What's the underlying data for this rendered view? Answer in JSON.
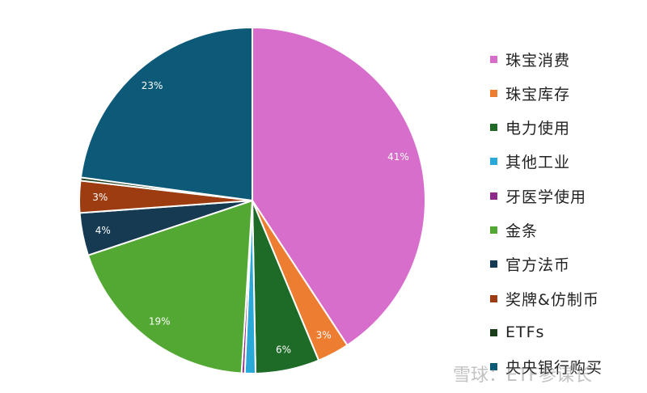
{
  "chart_data": {
    "type": "pie",
    "title": "",
    "slices": [
      {
        "label": "珠宝消费",
        "value": 41,
        "display": "41%",
        "color": "#d86ecc"
      },
      {
        "label": "珠宝库存",
        "value": 3,
        "display": "3%",
        "color": "#ed7d31"
      },
      {
        "label": "电力使用",
        "value": 6,
        "display": "6%",
        "color": "#1e6b28"
      },
      {
        "label": "其他工业",
        "value": 1,
        "display": "",
        "color": "#2aa8d8"
      },
      {
        "label": "牙医学使用",
        "value": 0.3,
        "display": "",
        "color": "#8e2c8c"
      },
      {
        "label": "金条",
        "value": 19,
        "display": "19%",
        "color": "#53a833"
      },
      {
        "label": "官方法币",
        "value": 4,
        "display": "4%",
        "color": "#163a52"
      },
      {
        "label": "奖牌&仿制币",
        "value": 3,
        "display": "3%",
        "color": "#9c3c10"
      },
      {
        "label": "ETFs",
        "value": 0.3,
        "display": "",
        "color": "#1a3d1a"
      },
      {
        "label": "央央银行购买",
        "value": 23,
        "display": "23%",
        "color": "#0d5a78"
      }
    ],
    "legend_position": "right"
  },
  "legend": {
    "items": [
      "珠宝消费",
      "珠宝库存",
      "电力使用",
      "其他工业",
      "牙医学使用",
      "金条",
      "官方法币",
      "奖牌&仿制币",
      "ETFs",
      "央央银行购买"
    ]
  },
  "watermark": "雪球：ETF参谋长"
}
